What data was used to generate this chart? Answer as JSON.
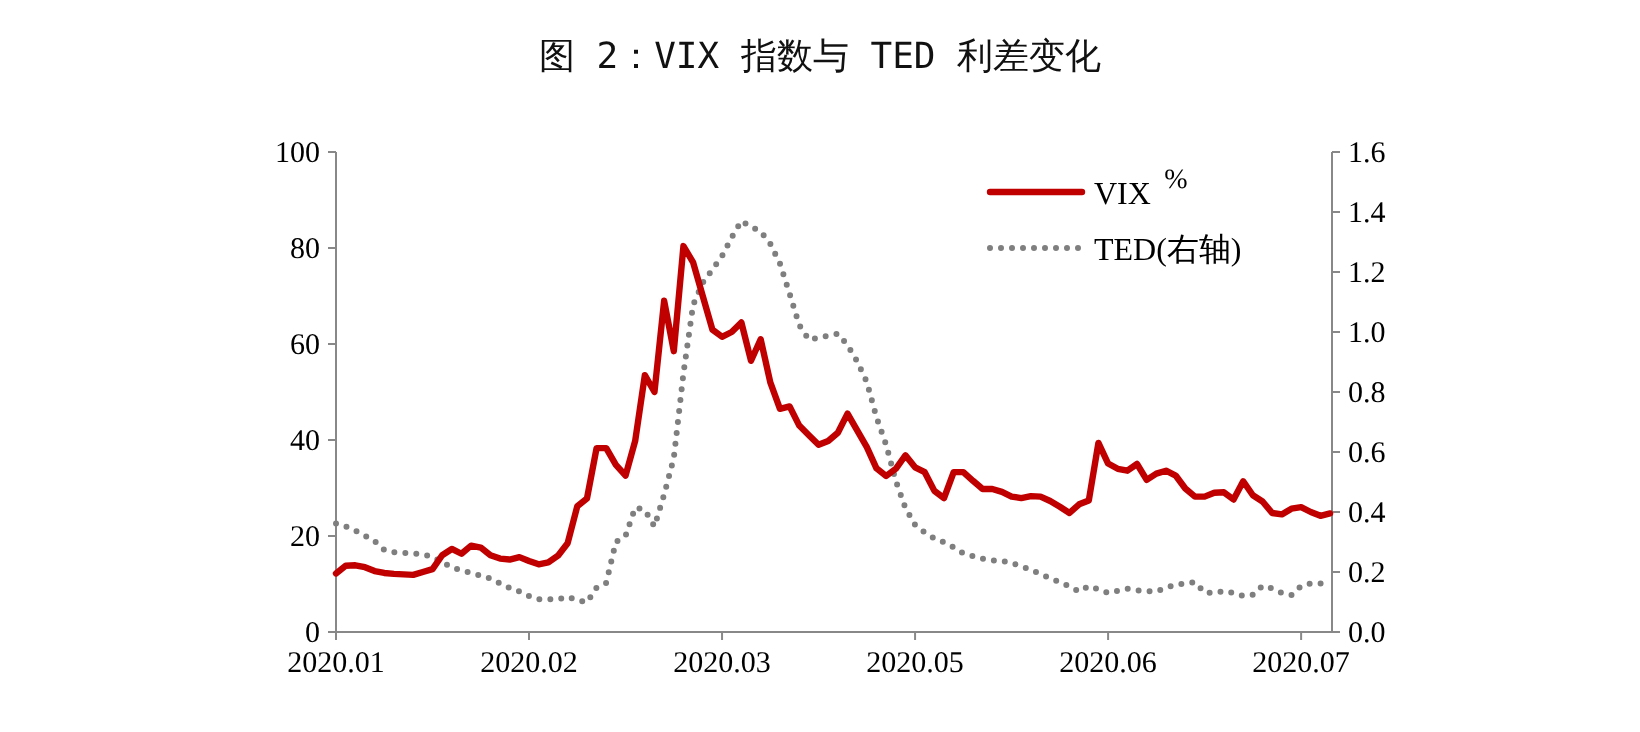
{
  "chart_data": {
    "type": "line",
    "title": "图 2：VIX 指数与 TED 利差变化",
    "y2label": "%",
    "legend": "top right",
    "grid": false,
    "categories": [
      "2020.01",
      null,
      null,
      null,
      null,
      null,
      null,
      null,
      null,
      null,
      null,
      null,
      null,
      null,
      null,
      null,
      null,
      null,
      null,
      null,
      "2020.02",
      null,
      null,
      null,
      null,
      null,
      null,
      null,
      null,
      null,
      null,
      null,
      null,
      null,
      null,
      null,
      null,
      null,
      null,
      null,
      "2020.03",
      null,
      null,
      null,
      null,
      null,
      null,
      null,
      null,
      null,
      null,
      null,
      null,
      null,
      null,
      null,
      null,
      null,
      null,
      null,
      "2020.05",
      null,
      null,
      null,
      null,
      null,
      null,
      null,
      null,
      null,
      null,
      null,
      null,
      null,
      null,
      null,
      null,
      null,
      null,
      null,
      "2020.06",
      null,
      null,
      null,
      null,
      null,
      null,
      null,
      null,
      null,
      null,
      null,
      null,
      null,
      null,
      null,
      null,
      null,
      null,
      null,
      "2020.07",
      null,
      null,
      null
    ],
    "ylim": [
      0,
      100
    ],
    "yticks": [
      0,
      20,
      40,
      60,
      80,
      100
    ],
    "y2lim": [
      0,
      1.6
    ],
    "y2ticks": [
      {
        "value": 0,
        "label": "0.0"
      },
      {
        "value": 0.2,
        "label": "0.2"
      },
      {
        "value": 0.4,
        "label": "0.4"
      },
      {
        "value": 0.6,
        "label": "0.6"
      },
      {
        "value": 0.8,
        "label": "0.8"
      },
      {
        "value": 1,
        "label": "1.0"
      },
      {
        "value": 1.2,
        "label": "1.2"
      },
      {
        "value": 1.4,
        "label": "1.4"
      },
      {
        "value": 1.6,
        "label": "1.6"
      }
    ],
    "series": [
      {
        "name": "VIX",
        "color": "#c00000",
        "line_style": "solid",
        "values": [
          12.2,
          13.8,
          13.9,
          13.5,
          12.7,
          12.3,
          12.1,
          12,
          11.9,
          12.5,
          13.1,
          16,
          17.3,
          16.3,
          18,
          17.6,
          16,
          15.3,
          15.1,
          15.6,
          14.8,
          14.1,
          14.5,
          15.9,
          18.5,
          26.2,
          27.8,
          38.3,
          38.3,
          34.8,
          32.6,
          39.8,
          53.5,
          50,
          69,
          58.5,
          80.4,
          77,
          70,
          63,
          61.5,
          62.5,
          64.5,
          56.5,
          61,
          52,
          46.5,
          47,
          43,
          41,
          39,
          39.8,
          41.5,
          45.5,
          42,
          38.5,
          34.1,
          32.5,
          34,
          36.8,
          34.3,
          33.3,
          29.4,
          27.9,
          33.3,
          33.3,
          31.5,
          29.8,
          29.8,
          29.2,
          28.2,
          27.9,
          28.3,
          28.2,
          27.3,
          26.1,
          24.8,
          26.6,
          27.4,
          39.4,
          35.1,
          34,
          33.6,
          35,
          31.7,
          33,
          33.6,
          32.6,
          29.9,
          28.2,
          28.2,
          29,
          29.1,
          27.6,
          31.4,
          28.5,
          27.2,
          24.8,
          24.5,
          25.7,
          26,
          25,
          24.2,
          24.7
        ]
      },
      {
        "name": "TED(右轴)",
        "color": "#7f7f7f",
        "line_style": "dotted",
        "axis": "y2",
        "values": [
          0.362,
          0.352,
          0.338,
          0.321,
          0.303,
          0.274,
          0.266,
          0.264,
          0.262,
          0.258,
          0.251,
          0.233,
          0.216,
          0.205,
          0.197,
          0.188,
          0.178,
          0.162,
          0.147,
          0.135,
          0.12,
          0.109,
          0.109,
          0.109,
          0.118,
          0.106,
          0.099,
          0.148,
          0.164,
          0.3,
          0.32,
          0.415,
          0.407,
          0.352,
          0.458,
          0.58,
          0.862,
          1.09,
          1.164,
          1.208,
          1.253,
          1.315,
          1.37,
          1.351,
          1.335,
          1.294,
          1.228,
          1.128,
          1.023,
          0.974,
          0.981,
          0.988,
          0.994,
          0.956,
          0.902,
          0.833,
          0.716,
          0.624,
          0.504,
          0.413,
          0.357,
          0.332,
          0.312,
          0.299,
          0.282,
          0.262,
          0.253,
          0.244,
          0.239,
          0.237,
          0.23,
          0.219,
          0.207,
          0.193,
          0.179,
          0.166,
          0.152,
          0.135,
          0.153,
          0.142,
          0.13,
          0.137,
          0.144,
          0.139,
          0.136,
          0.135,
          0.148,
          0.157,
          0.162,
          0.166,
          0.131,
          0.13,
          0.137,
          0.13,
          0.12,
          0.124,
          0.154,
          0.145,
          0.13,
          0.123,
          0.153,
          0.162,
          0.162,
          0.162
        ]
      }
    ]
  }
}
